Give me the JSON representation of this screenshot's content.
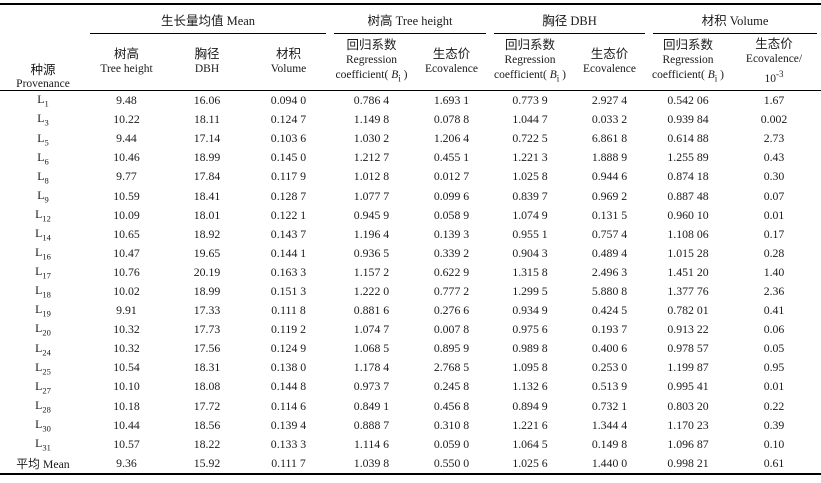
{
  "table": {
    "provenance_header": {
      "zh": "种源",
      "en": "Provenance"
    },
    "groups": {
      "mean": "生长量均值 Mean",
      "tree_height": "树高 Tree height",
      "dbh": "胸径 DBH",
      "volume": "材积 Volume"
    },
    "subheaders": {
      "mean_tree_height": {
        "zh": "树高",
        "en": "Tree height"
      },
      "mean_dbh": {
        "zh": "胸径",
        "en": "DBH"
      },
      "mean_volume": {
        "zh": "材积",
        "en": "Volume"
      },
      "regcoef": {
        "zh": "回归系数",
        "en1": "Regression",
        "pre": "coefficient( ",
        "var": "B",
        "sub": "i",
        "post": " )"
      },
      "ecovalence": {
        "zh": "生态价",
        "en": "Ecovalence"
      },
      "ecovalence_volume": {
        "zh": "生态价",
        "en": "Ecovalence/",
        "base": "10",
        "sup": "-3"
      }
    },
    "rows": [
      {
        "base": "L",
        "sub": "1",
        "cells": [
          "9.48",
          "16.06",
          "0.094 0",
          "0.786 4",
          "1.693 1",
          "0.773 9",
          "2.927 4",
          "0.542 06",
          "1.67"
        ]
      },
      {
        "base": "L",
        "sub": "3",
        "cells": [
          "10.22",
          "18.11",
          "0.124 7",
          "1.149 8",
          "0.078 8",
          "1.044 7",
          "0.033 2",
          "0.939 84",
          "0.002"
        ]
      },
      {
        "base": "L",
        "sub": "5",
        "cells": [
          "9.44",
          "17.14",
          "0.103 6",
          "1.030 2",
          "1.206 4",
          "0.722 5",
          "6.861 8",
          "0.614 88",
          "2.73"
        ]
      },
      {
        "base": "L",
        "sub": "6",
        "cells": [
          "10.46",
          "18.99",
          "0.145 0",
          "1.212 7",
          "0.455 1",
          "1.221 3",
          "1.888 9",
          "1.255 89",
          "0.43"
        ]
      },
      {
        "base": "L",
        "sub": "8",
        "cells": [
          "9.77",
          "17.84",
          "0.117 9",
          "1.012 8",
          "0.012 7",
          "1.025 8",
          "0.944 6",
          "0.874 18",
          "0.30"
        ]
      },
      {
        "base": "L",
        "sub": "9",
        "cells": [
          "10.59",
          "18.41",
          "0.128 7",
          "1.077 7",
          "0.099 6",
          "0.839 7",
          "0.969 2",
          "0.887 48",
          "0.07"
        ]
      },
      {
        "base": "L",
        "sub": "12",
        "cells": [
          "10.09",
          "18.01",
          "0.122 1",
          "0.945 9",
          "0.058 9",
          "1.074 9",
          "0.131 5",
          "0.960 10",
          "0.01"
        ]
      },
      {
        "base": "L",
        "sub": "14",
        "cells": [
          "10.65",
          "18.92",
          "0.143 7",
          "1.196 4",
          "0.139 3",
          "0.955 1",
          "0.757 4",
          "1.108 06",
          "0.17"
        ]
      },
      {
        "base": "L",
        "sub": "16",
        "cells": [
          "10.47",
          "19.65",
          "0.144 1",
          "0.936 5",
          "0.339 2",
          "0.904 3",
          "0.489 4",
          "1.015 28",
          "0.28"
        ]
      },
      {
        "base": "L",
        "sub": "17",
        "cells": [
          "10.76",
          "20.19",
          "0.163 3",
          "1.157 2",
          "0.622 9",
          "1.315 8",
          "2.496 3",
          "1.451 20",
          "1.40"
        ]
      },
      {
        "base": "L",
        "sub": "18",
        "cells": [
          "10.02",
          "18.99",
          "0.151 3",
          "1.222 0",
          "0.777 2",
          "1.299 5",
          "5.880 8",
          "1.377 76",
          "2.36"
        ]
      },
      {
        "base": "L",
        "sub": "19",
        "cells": [
          "9.91",
          "17.33",
          "0.111 8",
          "0.881 6",
          "0.276 6",
          "0.934 9",
          "0.424 5",
          "0.782 01",
          "0.41"
        ]
      },
      {
        "base": "L",
        "sub": "20",
        "cells": [
          "10.32",
          "17.73",
          "0.119 2",
          "1.074 7",
          "0.007 8",
          "0.975 6",
          "0.193 7",
          "0.913 22",
          "0.06"
        ]
      },
      {
        "base": "L",
        "sub": "24",
        "cells": [
          "10.32",
          "17.56",
          "0.124 9",
          "1.068 5",
          "0.895 9",
          "0.989 8",
          "0.400 6",
          "0.978 57",
          "0.05"
        ]
      },
      {
        "base": "L",
        "sub": "25",
        "cells": [
          "10.54",
          "18.31",
          "0.138 0",
          "1.178 4",
          "2.768 5",
          "1.095 8",
          "0.253 0",
          "1.199 87",
          "0.95"
        ]
      },
      {
        "base": "L",
        "sub": "27",
        "cells": [
          "10.10",
          "18.08",
          "0.144 8",
          "0.973 7",
          "0.245 8",
          "1.132 6",
          "0.513 9",
          "0.995 41",
          "0.01"
        ]
      },
      {
        "base": "L",
        "sub": "28",
        "cells": [
          "10.18",
          "17.72",
          "0.114 6",
          "0.849 1",
          "0.456 8",
          "0.894 9",
          "0.732 1",
          "0.803 20",
          "0.22"
        ]
      },
      {
        "base": "L",
        "sub": "30",
        "cells": [
          "10.44",
          "18.56",
          "0.139 4",
          "0.888 7",
          "0.310 8",
          "1.221 6",
          "1.344 4",
          "1.170 23",
          "0.39"
        ]
      },
      {
        "base": "L",
        "sub": "31",
        "cells": [
          "10.57",
          "18.22",
          "0.133 3",
          "1.114 6",
          "0.059 0",
          "1.064 5",
          "0.149 8",
          "1.096 87",
          "0.10"
        ]
      },
      {
        "base": "平均 Mean",
        "sub": "",
        "cells": [
          "9.36",
          "15.92",
          "0.111 7",
          "1.039 8",
          "0.550 0",
          "1.025 6",
          "1.440 0",
          "0.998 21",
          "0.61"
        ]
      }
    ]
  }
}
